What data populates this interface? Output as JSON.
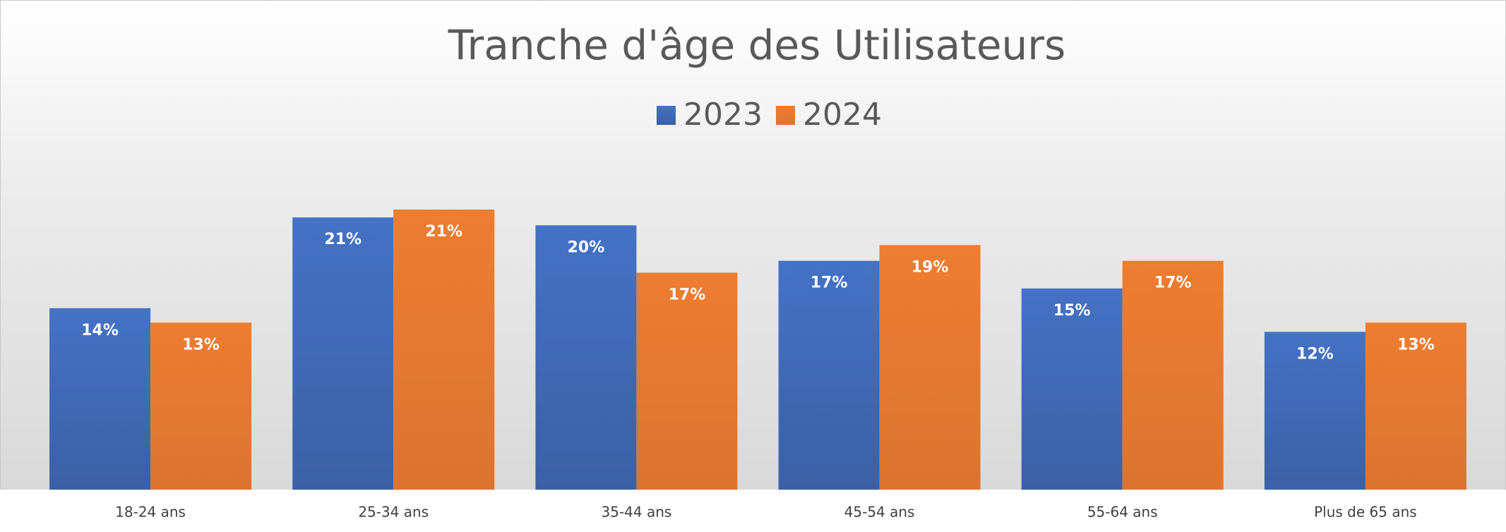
{
  "chart_data": {
    "type": "bar",
    "title": "Tranche d'âge des Utilisateurs",
    "categories": [
      "18-24 ans",
      "25-34 ans",
      "35-44 ans",
      "45-54 ans",
      "55-64 ans",
      "Plus de 65 ans"
    ],
    "series": [
      {
        "name": "2023",
        "color": "#4472c4",
        "values": [
          13.8,
          20.7,
          20.1,
          17.4,
          15.3,
          12.0
        ],
        "value_labels": [
          "14%",
          "21%",
          "20%",
          "17%",
          "15%",
          "12%"
        ]
      },
      {
        "name": "2024",
        "color": "#ed7d31",
        "values": [
          12.7,
          21.3,
          16.5,
          18.6,
          17.4,
          12.7
        ],
        "value_labels": [
          "13%",
          "21%",
          "17%",
          "19%",
          "17%",
          "13%"
        ]
      }
    ],
    "legend": "top"
  }
}
